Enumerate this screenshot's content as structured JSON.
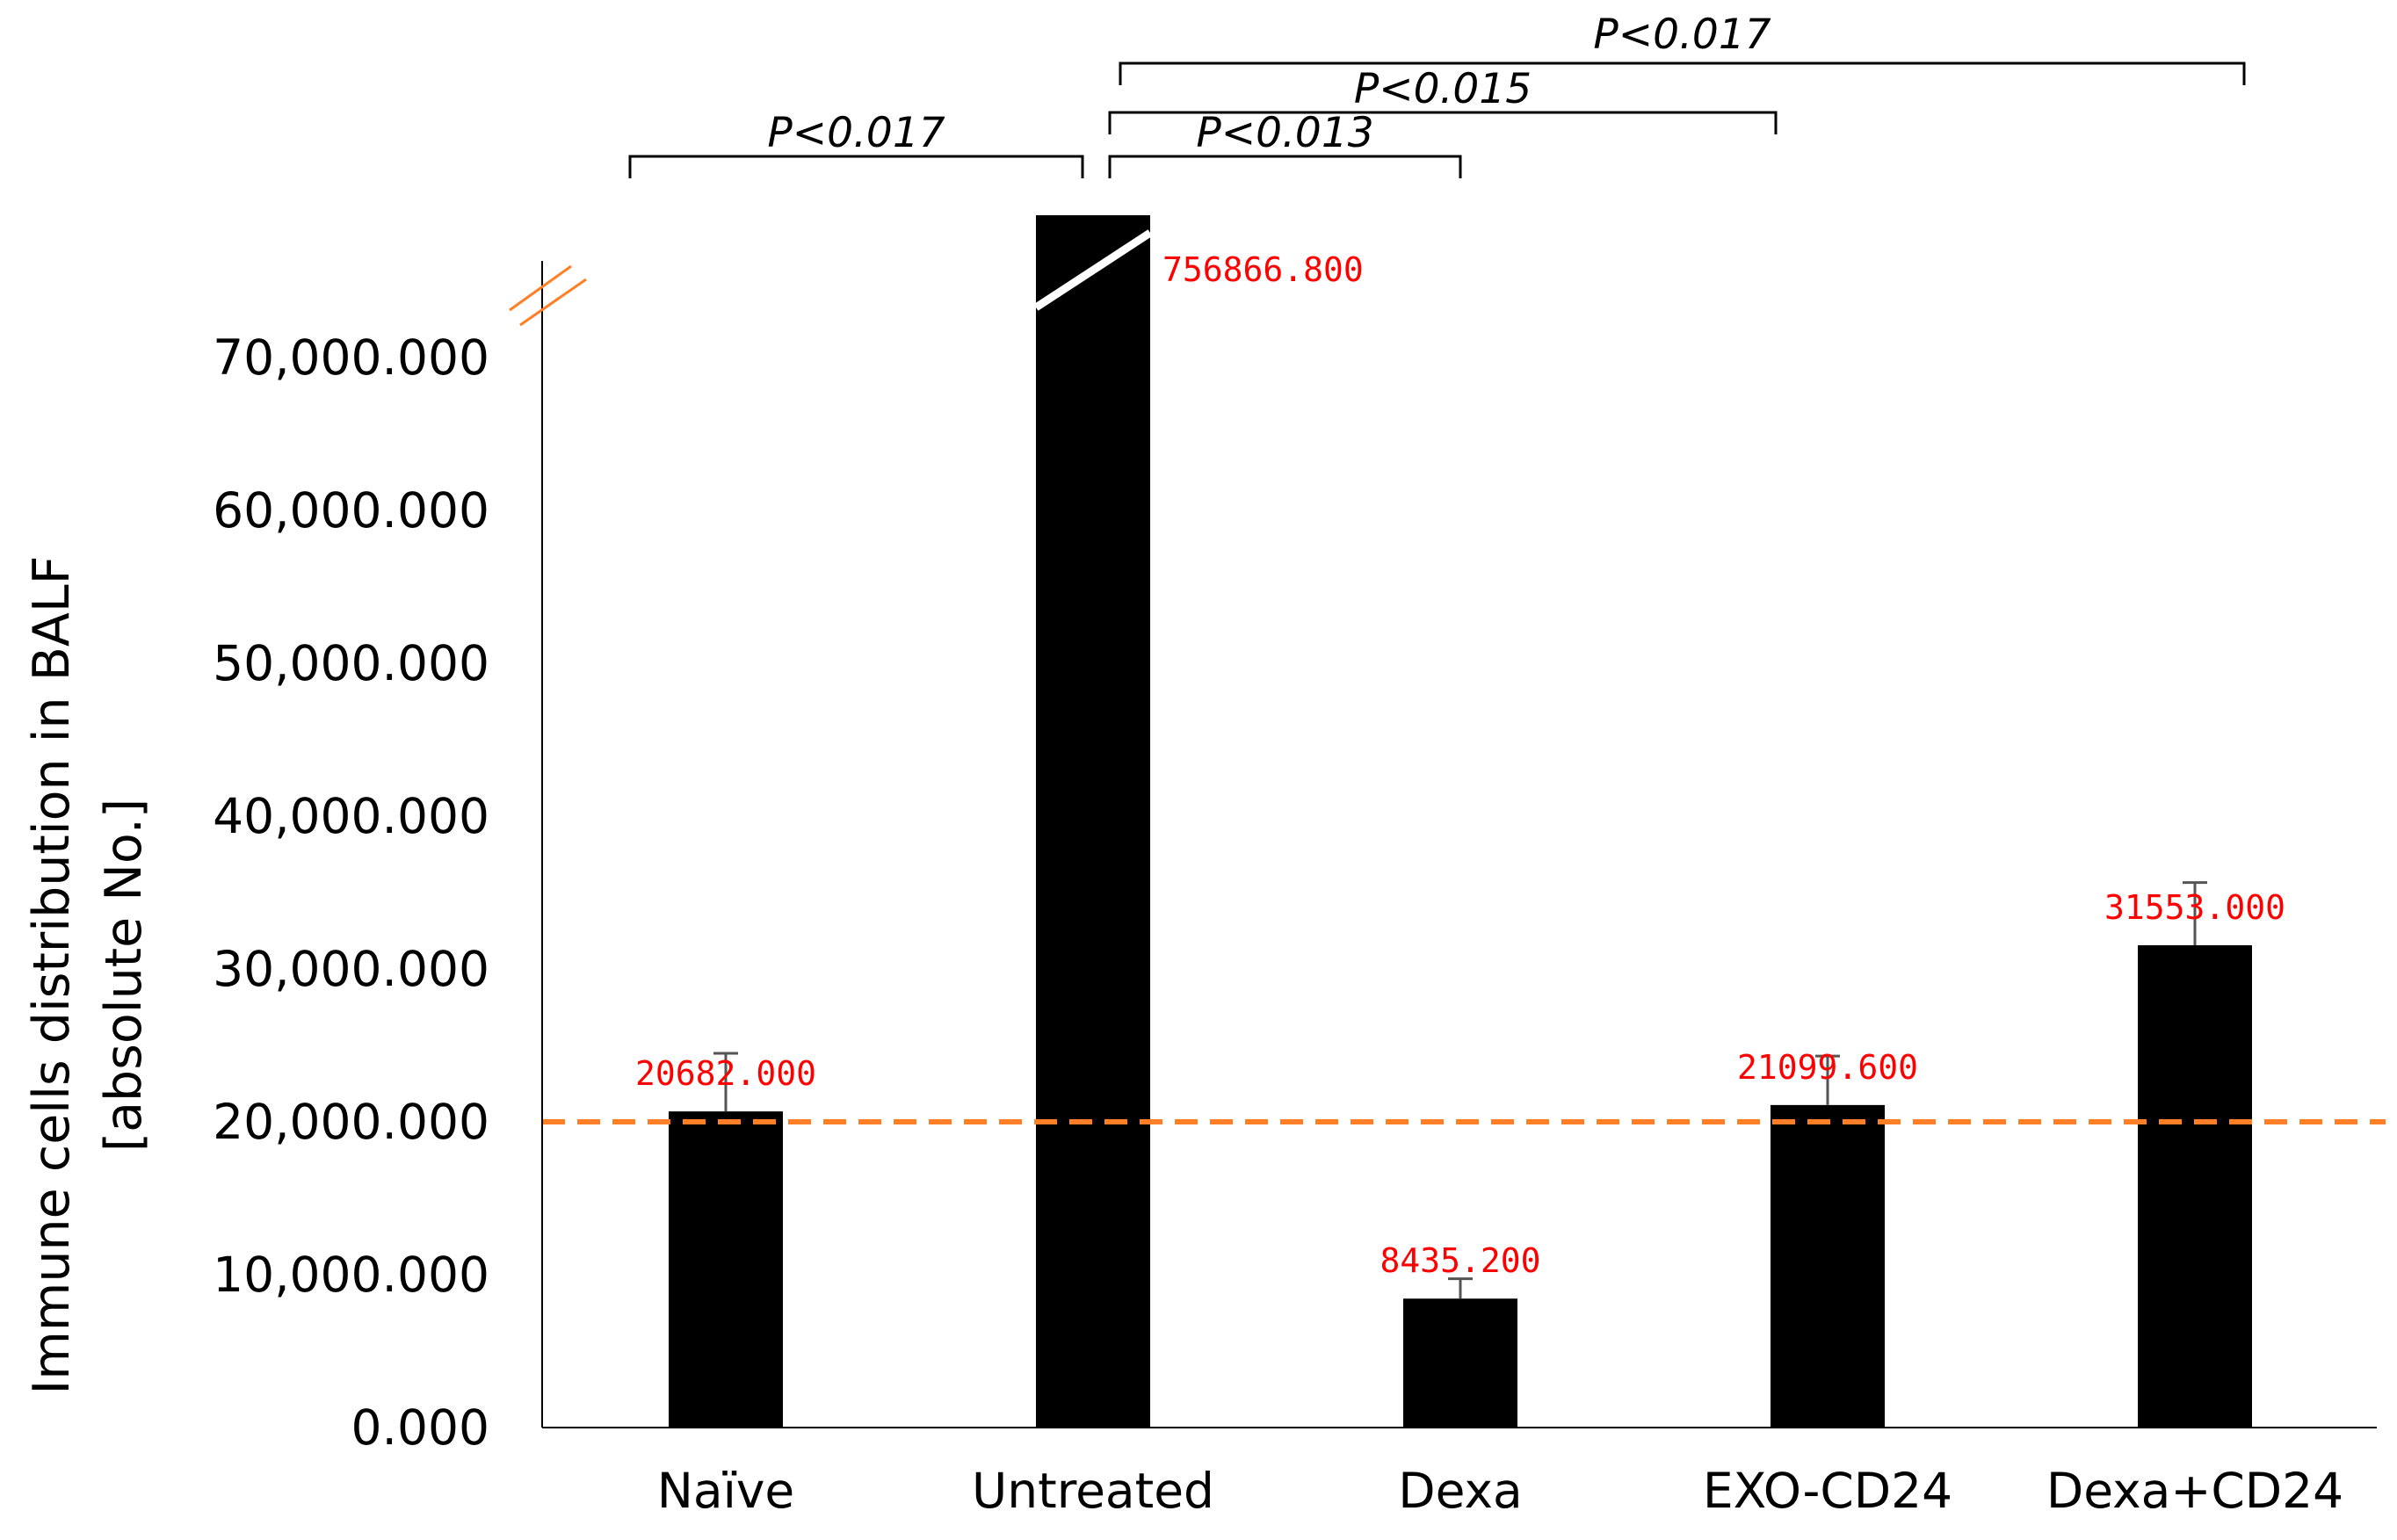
{
  "chart_data": {
    "type": "bar",
    "categories": [
      "Naïve",
      "Untreated",
      "Dexa",
      "EXO-CD24",
      "Dexa+CD24"
    ],
    "values": [
      20682000,
      756866800,
      8435200,
      21099600,
      31553000
    ],
    "errors_upper": [
      3800000,
      0,
      1300000,
      3200000,
      4100000
    ],
    "data_labels": [
      "20682.000",
      "756866.800",
      "8435.200",
      "21099.600",
      "31553.000"
    ],
    "yticks": [
      "0.000",
      "10,000.000",
      "20,000.000",
      "30,000.000",
      "40,000.000",
      "50,000.000",
      "60,000.000",
      "70,000.000"
    ],
    "ylim": [
      0,
      80000000
    ],
    "ylabel_line1": "Immune cells distribution in BALF",
    "ylabel_line2": "[absolute No.]",
    "xlabel": "",
    "axis_break": true,
    "reference_line": {
      "value": 20000000,
      "color": "#ff7f27",
      "style": "dashed"
    },
    "bar_color": "#000000",
    "label_color": "#ff0000",
    "break_mark_color": "#ff7f27",
    "grid": false,
    "significance": [
      {
        "from": "Naïve",
        "to": "Untreated",
        "label": "P<0.017"
      },
      {
        "from": "Untreated",
        "to": "Dexa",
        "label": "P<0.013"
      },
      {
        "from": "Untreated",
        "to": "EXO-CD24",
        "label": "P<0.015"
      },
      {
        "from": "Untreated",
        "to": "Dexa+CD24",
        "label": "P<0.017"
      }
    ]
  }
}
